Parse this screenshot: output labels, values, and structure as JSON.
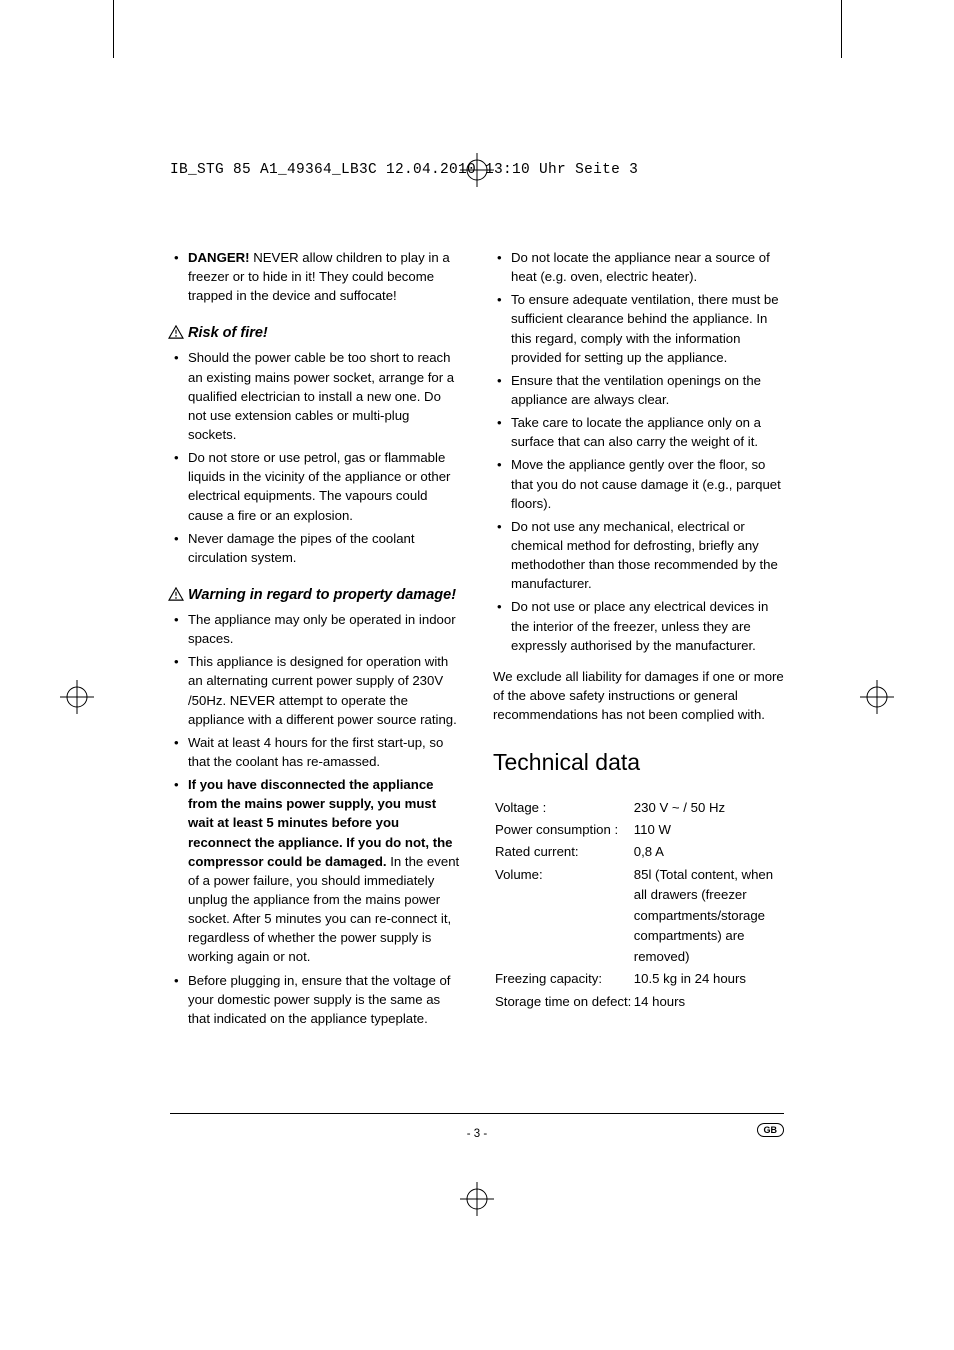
{
  "header": "IB_STG 85 A1_49364_LB3C  12.04.2010  13:10 Uhr  Seite 3",
  "left": {
    "danger_item": {
      "bold": "DANGER!",
      "rest": " NEVER allow children to play in a freezer or to hide in it! They could become trapped in the device and suffocate!"
    },
    "risk_head": "Risk of fire!",
    "risk_items": [
      "Should the power cable be too short to reach an existing mains power socket, arrange for a qualified electrician to install a new one. Do not use extension cables or multi-plug sockets.",
      "Do not store or use petrol, gas or flammable liquids in the vicinity of the appliance or other electrical equipments. The vapours could cause a fire or an explosion.",
      "Never damage the pipes of the coolant circulation system."
    ],
    "warn_head": "Warning in regard to property damage!",
    "warn_items": [
      "The appliance may only be operated in indoor spaces.",
      "This appliance is designed for operation with an alternating current power supply of 230V /50Hz. NEVER attempt to operate the appliance with a different power source rating.",
      "Wait at least 4 hours for the first start-up, so that the coolant has re-amassed.",
      {
        "bold": "If you have disconnected the appliance from the mains power supply, you must wait at least 5 minutes before you reconnect the appliance. If you do not, the compressor could be damaged.",
        "rest": " In the event of a power failure, you should immediately unplug the appliance from the mains power socket. After 5 minutes you can re-connect it, regardless of whether the power supply is working again or not."
      },
      "Before plugging in, ensure that the voltage of your domestic power supply is the same as that indicated on the appliance typeplate."
    ]
  },
  "right": {
    "cont_items": [
      "Do not locate the appliance near a source of heat (e.g. oven, electric heater).",
      "To ensure adequate ventilation, there must be sufficient clearance behind the appliance. In this regard, comply with the information provided for setting up the appliance.",
      "Ensure that the ventilation openings on the appliance are always clear.",
      "Take care to locate the appliance only on a surface that can also carry the weight of it.",
      "Move the appliance gently over the floor, so that you do not cause damage it (e.g., parquet floors).",
      "Do not use any mechanical, electrical or chemical method for defrosting, briefly any methodother than those recommended by the manufacturer.",
      "Do not use or place any electrical devices in the interior of the freezer, unless they are expressly authorised by the manufacturer."
    ],
    "disclaimer": "We exclude all liability for damages if one or more of the above safety instructions or general recommendations has not been complied with.",
    "tech_head": "Technical data",
    "tech": [
      {
        "k": "Voltage :",
        "v": "230 V ~ / 50 Hz"
      },
      {
        "k": "Power consumption :",
        "v": "110 W"
      },
      {
        "k": "Rated current:",
        "v": "0,8 A"
      },
      {
        "k": "Volume:",
        "v": "85l (Total content, when all drawers (freezer compartments/storage compartments) are removed)"
      },
      {
        "k": "Freezing capacity:",
        "v": "10.5 kg in 24 hours"
      },
      {
        "k": "Storage time on defect:",
        "v": "14 hours"
      }
    ]
  },
  "footer": {
    "page": "- 3 -",
    "badge": "GB"
  }
}
